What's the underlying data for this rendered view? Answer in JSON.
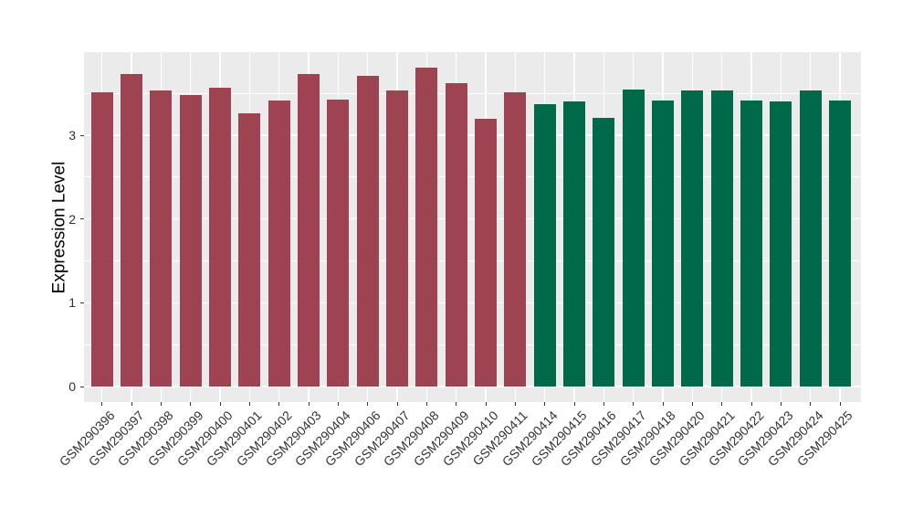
{
  "chart_data": {
    "type": "bar",
    "title": "",
    "xlabel": "",
    "ylabel": "Expression Level",
    "yticks": [
      0,
      1,
      2,
      3
    ],
    "ylim": [
      -0.19,
      3.99
    ],
    "grid": "on",
    "legend": "none",
    "panel_background_color": "#EBEBEB",
    "gridline_color": "#FFFFFF",
    "categories": [
      "GSM290396",
      "GSM290397",
      "GSM290398",
      "GSM290399",
      "GSM290400",
      "GSM290401",
      "GSM290402",
      "GSM290403",
      "GSM290404",
      "GSM290406",
      "GSM290407",
      "GSM290408",
      "GSM290409",
      "GSM290410",
      "GSM290411",
      "GSM290414",
      "GSM290415",
      "GSM290416",
      "GSM290417",
      "GSM290418",
      "GSM290420",
      "GSM290421",
      "GSM290422",
      "GSM290423",
      "GSM290424",
      "GSM290425"
    ],
    "values": [
      3.51,
      3.73,
      3.53,
      3.48,
      3.57,
      3.26,
      3.41,
      3.73,
      3.43,
      3.71,
      3.53,
      3.81,
      3.62,
      3.2,
      3.51,
      3.37,
      3.4,
      3.21,
      3.55,
      3.42,
      3.54,
      3.54,
      3.42,
      3.4,
      3.53,
      3.41
    ],
    "groups": [
      "group1",
      "group1",
      "group1",
      "group1",
      "group1",
      "group1",
      "group1",
      "group1",
      "group1",
      "group1",
      "group1",
      "group1",
      "group1",
      "group1",
      "group1",
      "group2",
      "group2",
      "group2",
      "group2",
      "group2",
      "group2",
      "group2",
      "group2",
      "group2",
      "group2",
      "group2"
    ],
    "group_colors": {
      "group1": "#9D4352",
      "group2": "#00694A"
    }
  }
}
